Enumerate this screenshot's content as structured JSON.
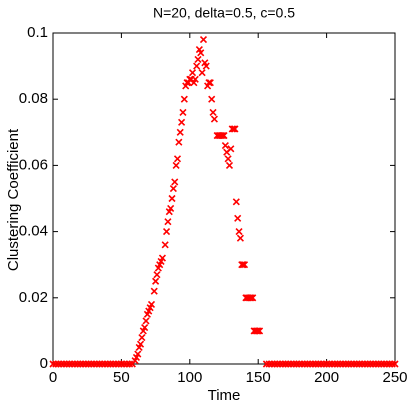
{
  "chart_data": {
    "type": "scatter",
    "title": "N=20, delta=0.5, c=0.5",
    "x_label": "Time",
    "y_label": "Clustering Coefficient",
    "color": "#ff0000",
    "marker": "x",
    "xlim": [
      0,
      250
    ],
    "ylim": [
      0,
      0.1
    ],
    "xticks": [
      0,
      50,
      100,
      150,
      200,
      250
    ],
    "yticks": [
      0,
      0.02,
      0.04,
      0.06,
      0.08,
      0.1
    ],
    "x": [
      0,
      2,
      4,
      6,
      8,
      10,
      12,
      14,
      16,
      18,
      20,
      22,
      24,
      26,
      28,
      30,
      32,
      34,
      36,
      38,
      40,
      42,
      44,
      46,
      48,
      50,
      52,
      54,
      56,
      58,
      60,
      61,
      62,
      63,
      64,
      65,
      66,
      67,
      68,
      69,
      70,
      71,
      72,
      74,
      75,
      76,
      77,
      78,
      79,
      80,
      82,
      83,
      84,
      85,
      86,
      87,
      88,
      89,
      90,
      91,
      92,
      93,
      94,
      95,
      96,
      97,
      98,
      99,
      100,
      101,
      102,
      103,
      104,
      105,
      106,
      107,
      108,
      109,
      110,
      111,
      112,
      113,
      114,
      115,
      116,
      117,
      118,
      120,
      121,
      122,
      123,
      124,
      125,
      126,
      127,
      128,
      129,
      130,
      131,
      132,
      133,
      134,
      135,
      136,
      137,
      138,
      139,
      140,
      141,
      142,
      143,
      144,
      145,
      146,
      147,
      148,
      149,
      150,
      151,
      156,
      158,
      160,
      162,
      164,
      166,
      168,
      170,
      172,
      174,
      176,
      178,
      180,
      182,
      184,
      186,
      188,
      190,
      192,
      194,
      196,
      198,
      200,
      202,
      204,
      206,
      208,
      210,
      212,
      214,
      216,
      218,
      220,
      222,
      224,
      226,
      228,
      230,
      232,
      234,
      236,
      238,
      240,
      242,
      244,
      246,
      248,
      250
    ],
    "values": [
      0,
      0,
      0,
      0,
      0,
      0,
      0,
      0,
      0,
      0,
      0,
      0,
      0,
      0,
      0,
      0,
      0,
      0,
      0,
      0,
      0,
      0,
      0,
      0,
      0,
      0,
      0,
      0,
      0,
      0,
      0.001,
      0.002,
      0.003,
      0.005,
      0.006,
      0.008,
      0.01,
      0.011,
      0.013,
      0.015,
      0.016,
      0.017,
      0.018,
      0.022,
      0.025,
      0.027,
      0.029,
      0.03,
      0.031,
      0.032,
      0.036,
      0.04,
      0.043,
      0.046,
      0.047,
      0.05,
      0.053,
      0.055,
      0.06,
      0.062,
      0.067,
      0.07,
      0.073,
      0.076,
      0.08,
      0.084,
      0.085,
      0.085,
      0.086,
      0.086,
      0.088,
      0.085,
      0.086,
      0.09,
      0.092,
      0.095,
      0.094,
      0.088,
      0.098,
      0.091,
      0.09,
      0.084,
      0.085,
      0.085,
      0.08,
      0.076,
      0.074,
      0.069,
      0.069,
      0.069,
      0.069,
      0.069,
      0.069,
      0.066,
      0.064,
      0.062,
      0.06,
      0.065,
      0.071,
      0.071,
      0.071,
      0.049,
      0.044,
      0.04,
      0.038,
      0.03,
      0.03,
      0.03,
      0.02,
      0.02,
      0.02,
      0.02,
      0.02,
      0.02,
      0.01,
      0.01,
      0.01,
      0.01,
      0.01,
      0,
      0,
      0,
      0,
      0,
      0,
      0,
      0,
      0,
      0,
      0,
      0,
      0,
      0,
      0,
      0,
      0,
      0,
      0,
      0,
      0,
      0,
      0,
      0,
      0,
      0,
      0,
      0,
      0,
      0,
      0,
      0,
      0,
      0,
      0,
      0,
      0,
      0,
      0,
      0,
      0,
      0,
      0,
      0,
      0,
      0,
      0,
      0
    ]
  }
}
